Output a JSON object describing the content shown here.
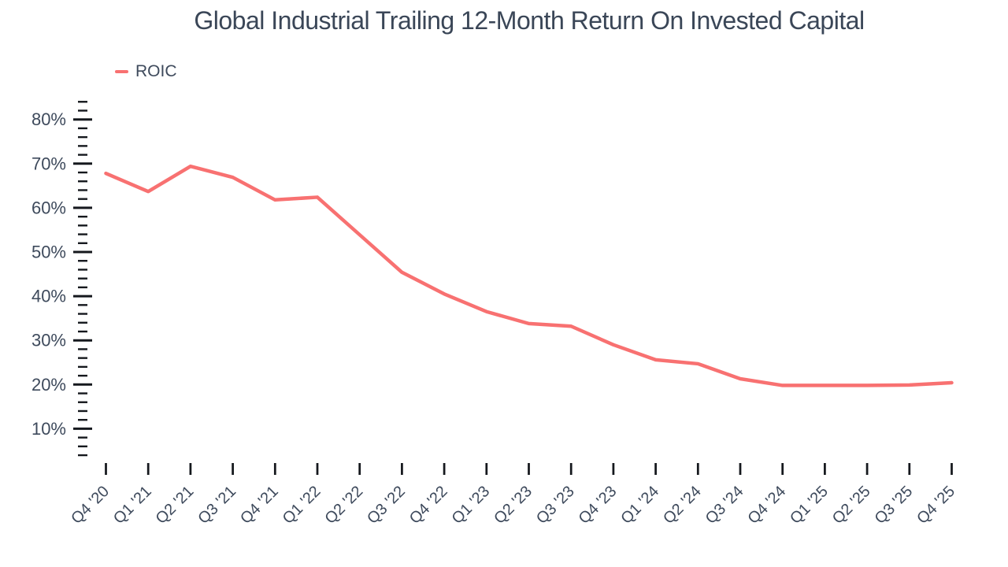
{
  "title": "Global Industrial Trailing 12-Month Return On Invested Capital",
  "legend": {
    "position": "top-left",
    "items": [
      {
        "label": "ROIC",
        "color": "#F87171"
      }
    ]
  },
  "chart_data": {
    "type": "line",
    "title": "Global Industrial Trailing 12-Month Return On Invested Capital",
    "categories": [
      "Q4 '20",
      "Q1 '21",
      "Q2 '21",
      "Q3 '21",
      "Q4 '21",
      "Q1 '22",
      "Q2 '22",
      "Q3 '22",
      "Q4 '22",
      "Q1 '23",
      "Q2 '23",
      "Q3 '23",
      "Q4 '23",
      "Q1 '24",
      "Q2 '24",
      "Q3 '24",
      "Q4 '24",
      "Q1 '25",
      "Q2 '25",
      "Q3 '25",
      "Q4 '25"
    ],
    "series": [
      {
        "name": "ROIC",
        "color": "#F87171",
        "values": [
          67.8,
          63.7,
          69.4,
          66.9,
          61.8,
          62.4,
          53.9,
          45.4,
          40.5,
          36.5,
          33.8,
          33.2,
          29.0,
          25.6,
          24.7,
          21.3,
          19.8,
          19.8,
          19.8,
          19.9,
          20.4
        ]
      }
    ],
    "xlabel": "",
    "ylabel": "",
    "y_axis": {
      "min": 4,
      "max": 84,
      "minor_step": 2,
      "major_step": 10,
      "label_min": 10,
      "label_max": 80,
      "unit": "%",
      "tick_labels": [
        "10%",
        "20%",
        "30%",
        "40%",
        "50%",
        "60%",
        "70%",
        "80%"
      ]
    },
    "x_axis": {
      "label_rotation": -45
    },
    "grid": false,
    "legend_position": "top-left"
  },
  "colors": {
    "line": "#F87171",
    "tick": "#15181D",
    "axis_label": "#3E4A5C",
    "title": "#3A4657",
    "background": "#FFFFFF"
  }
}
